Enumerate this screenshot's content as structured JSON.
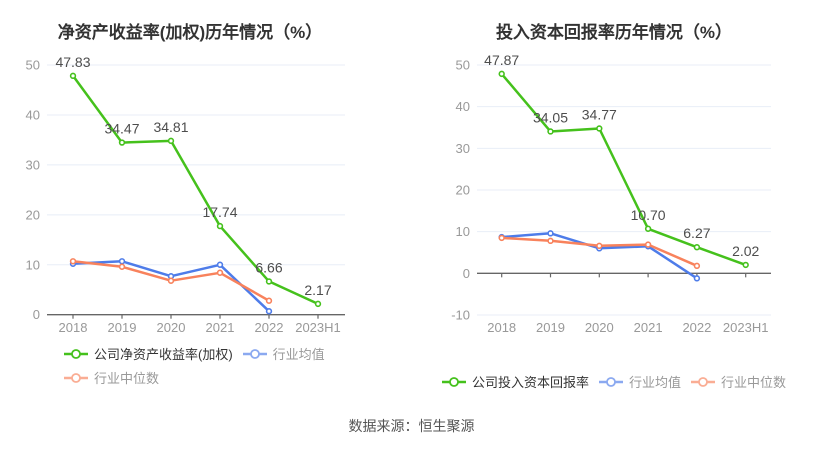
{
  "page": {
    "source_caption": "数据来源：恒生聚源",
    "background": "#ffffff"
  },
  "colors": {
    "company_series": "#45c11c",
    "industry_mean_series": "#4e7ce9",
    "industry_median_series": "#f8825c",
    "gridline": "#e8eef7",
    "axis_line": "#666666",
    "axis_label": "#999999",
    "data_label": "#4d4d4d",
    "title": "#333333",
    "caption": "#555555",
    "legend_text_primary": "#333333",
    "legend_text_muted": "#999999"
  },
  "chart_data": [
    {
      "type": "line",
      "title": "净资产收益率(加权)历年情况（%）",
      "categories": [
        "2018",
        "2019",
        "2020",
        "2021",
        "2022",
        "2023H1"
      ],
      "ylim": [
        0,
        50
      ],
      "y_ticks": [
        0,
        10,
        20,
        30,
        40,
        50
      ],
      "grid": true,
      "legend_position": "bottom",
      "legend_rows": [
        [
          0,
          1
        ],
        [
          2
        ]
      ],
      "series": [
        {
          "key": "company",
          "name": "公司净资产收益率(加权)",
          "color": "#45c11c",
          "values": [
            47.83,
            34.47,
            34.81,
            17.74,
            6.66,
            2.17
          ],
          "point_labels": [
            "47.83",
            "34.47",
            "34.81",
            "17.74",
            "6.66",
            "2.17"
          ],
          "legend_muted": false
        },
        {
          "key": "industry-mean",
          "name": "行业均值",
          "color": "#4e7ce9",
          "values": [
            10.2,
            10.7,
            7.7,
            10.0,
            0.7,
            null
          ],
          "point_labels": null,
          "legend_muted": true
        },
        {
          "key": "industry-median",
          "name": "行业中位数",
          "color": "#f8825c",
          "values": [
            10.7,
            9.6,
            6.8,
            8.4,
            2.8,
            null
          ],
          "point_labels": null,
          "legend_muted": true
        }
      ]
    },
    {
      "type": "line",
      "title": "投入资本回报率历年情况（%）",
      "categories": [
        "2018",
        "2019",
        "2020",
        "2021",
        "2022",
        "2023H1"
      ],
      "ylim": [
        -10,
        50
      ],
      "y_ticks": [
        -10,
        0,
        10,
        20,
        30,
        40,
        50
      ],
      "grid": true,
      "legend_position": "bottom",
      "legend_rows": [
        [
          0,
          1,
          2
        ]
      ],
      "series": [
        {
          "key": "company",
          "name": "公司投入资本回报率",
          "color": "#45c11c",
          "values": [
            47.87,
            34.05,
            34.77,
            10.7,
            6.27,
            2.02
          ],
          "point_labels": [
            "47.87",
            "34.05",
            "34.77",
            "10.70",
            "6.27",
            "2.02"
          ],
          "legend_muted": false
        },
        {
          "key": "industry-mean",
          "name": "行业均值",
          "color": "#4e7ce9",
          "values": [
            8.7,
            9.6,
            6.0,
            6.5,
            -1.2,
            null
          ],
          "point_labels": null,
          "legend_muted": true
        },
        {
          "key": "industry-median",
          "name": "行业中位数",
          "color": "#f8825c",
          "values": [
            8.5,
            7.8,
            6.6,
            6.9,
            1.8,
            null
          ],
          "point_labels": null,
          "legend_muted": true
        }
      ]
    }
  ]
}
